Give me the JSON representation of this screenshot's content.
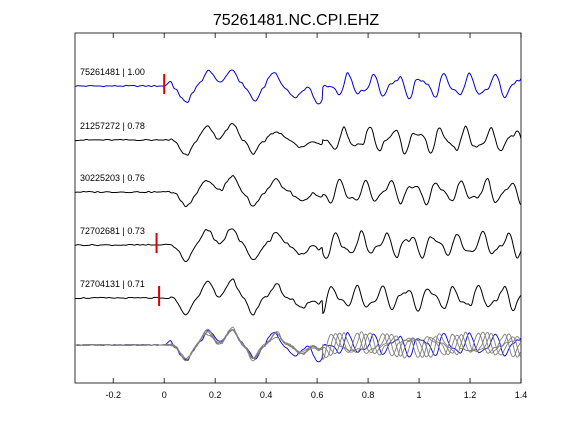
{
  "chart_data": {
    "type": "line",
    "title": "75261481.NC.CPI.EHZ",
    "xlabel": "",
    "ylabel": "",
    "xlim": [
      -0.35,
      1.4
    ],
    "x_ticks": [
      -0.2,
      0,
      0.2,
      0.4,
      0.6,
      0.8,
      1,
      1.2,
      1.4
    ],
    "x_tick_labels": [
      "-0.2",
      "0",
      "0.2",
      "0.4",
      "0.6",
      "0.8",
      "1",
      "1.2",
      "1.4"
    ],
    "grid": false,
    "legend": "none",
    "colors": {
      "reference": "#0000cc",
      "trace": "#000000",
      "overlay": "#808080",
      "pick": "#dd0000"
    },
    "traces": [
      {
        "label": "75261481 | 1.00",
        "pick_time": 0.0,
        "reference": true,
        "events": [
          [
            0.02,
            0.012,
            0.35
          ],
          [
            0.085,
            0.03,
            -1.0
          ],
          [
            0.175,
            0.028,
            0.95
          ],
          [
            0.265,
            0.03,
            1.0
          ],
          [
            0.355,
            0.026,
            -0.95
          ],
          [
            0.43,
            0.026,
            0.85
          ],
          [
            0.515,
            0.03,
            -0.65
          ],
          [
            0.605,
            0.024,
            -1.2
          ]
        ]
      },
      {
        "label": "21257272 | 0.78",
        "pick_time": null,
        "reference": false,
        "events": [
          [
            0.085,
            0.03,
            -0.95
          ],
          [
            0.17,
            0.028,
            0.8
          ],
          [
            0.265,
            0.028,
            1.05
          ],
          [
            0.35,
            0.026,
            -0.8
          ],
          [
            0.44,
            0.026,
            0.6
          ],
          [
            0.54,
            0.03,
            -0.45
          ],
          [
            0.61,
            0.02,
            -0.3
          ]
        ]
      },
      {
        "label": "30225203 | 0.76",
        "pick_time": null,
        "reference": false,
        "events": [
          [
            0.085,
            0.03,
            -0.9
          ],
          [
            0.17,
            0.028,
            0.75
          ],
          [
            0.265,
            0.028,
            1.0
          ],
          [
            0.35,
            0.026,
            -0.9
          ],
          [
            0.44,
            0.026,
            0.75
          ],
          [
            0.54,
            0.03,
            -0.55
          ],
          [
            0.61,
            0.02,
            -0.35
          ]
        ]
      },
      {
        "label": "72702681 | 0.73",
        "pick_time": -0.03,
        "reference": false,
        "events": [
          [
            0.085,
            0.03,
            -1.0
          ],
          [
            0.17,
            0.028,
            0.95
          ],
          [
            0.265,
            0.028,
            1.1
          ],
          [
            0.35,
            0.026,
            -1.0
          ],
          [
            0.44,
            0.026,
            0.8
          ],
          [
            0.54,
            0.03,
            -0.6
          ],
          [
            0.61,
            0.02,
            -0.3
          ]
        ]
      },
      {
        "label": "72704131 | 0.71",
        "pick_time": -0.02,
        "reference": false,
        "events": [
          [
            0.085,
            0.03,
            -1.0
          ],
          [
            0.17,
            0.028,
            1.0
          ],
          [
            0.265,
            0.028,
            1.15
          ],
          [
            0.35,
            0.026,
            -1.0
          ],
          [
            0.44,
            0.026,
            0.85
          ],
          [
            0.54,
            0.03,
            -0.65
          ],
          [
            0.61,
            0.02,
            -0.3
          ]
        ]
      }
    ]
  }
}
